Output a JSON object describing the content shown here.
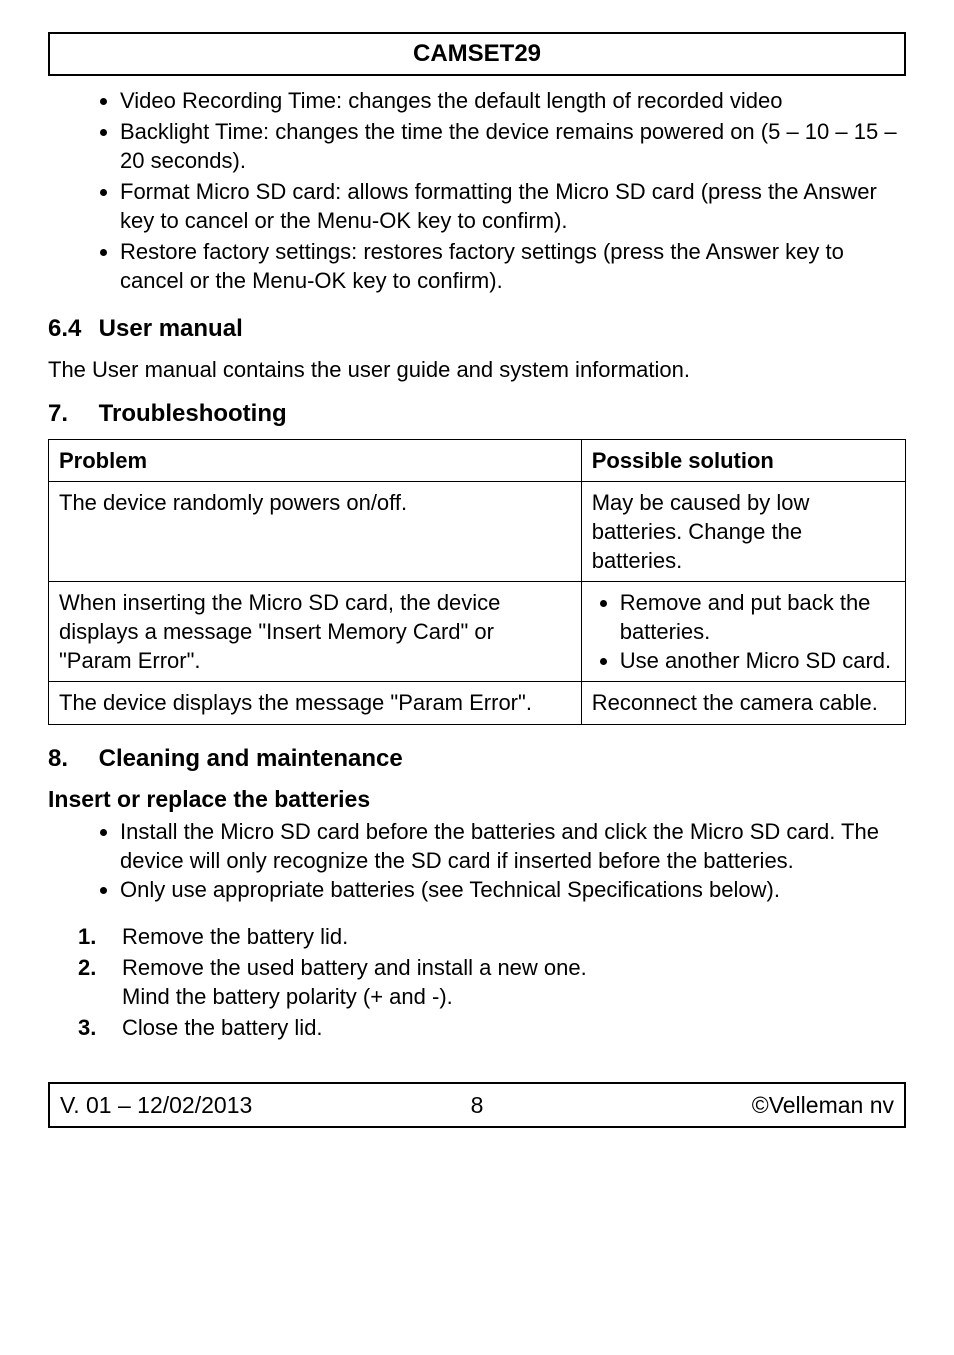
{
  "header": {
    "title": "CAMSET29"
  },
  "intro_bullets": [
    "Video Recording Time: changes the default length of recorded video",
    "Backlight Time: changes the time the device remains powered on (5 – 10 – 15 – 20 seconds).",
    "Format Micro SD card: allows formatting the Micro SD card (press the Answer key to cancel or the Menu-OK key to confirm).",
    "Restore factory settings: restores factory settings (press the Answer key to cancel or the Menu-OK key to confirm)."
  ],
  "section_6_4": {
    "number": "6.4",
    "title": "User manual",
    "body": "The User manual contains the user guide and system information."
  },
  "section_7": {
    "number": "7.",
    "title": "Troubleshooting",
    "table": {
      "col1_header": "Problem",
      "col2_header": "Possible solution",
      "rows": [
        {
          "problem": "The device randomly powers on/off.",
          "solution_text": "May be caused by low batteries. Change the batteries."
        },
        {
          "problem": "When inserting the Micro SD card, the device displays a message \"Insert Memory Card\" or \"Param Error\".",
          "solution_bullets": [
            "Remove and put back the batteries.",
            "Use another Micro SD card."
          ]
        },
        {
          "problem": "The device displays the message \"Param Error\".",
          "solution_text": "Reconnect the camera cable."
        }
      ]
    }
  },
  "section_8": {
    "number": "8.",
    "title": "Cleaning and maintenance",
    "sub_title": "Insert or replace the batteries",
    "bullets": [
      "Install the Micro SD card before the batteries and click the Micro SD card. The device will only recognize the SD card if inserted before the batteries.",
      "Only use appropriate batteries (see Technical Specifications below)."
    ],
    "steps": [
      {
        "n": "1.",
        "t": "Remove the battery lid."
      },
      {
        "n": "2.",
        "t": "Remove the used battery and install a new one.\nMind the battery polarity (+ and -)."
      },
      {
        "n": "3.",
        "t": "Close the battery lid."
      }
    ]
  },
  "footer": {
    "left": "V. 01 – 12/02/2013",
    "mid": "8",
    "right": "©Velleman nv"
  }
}
